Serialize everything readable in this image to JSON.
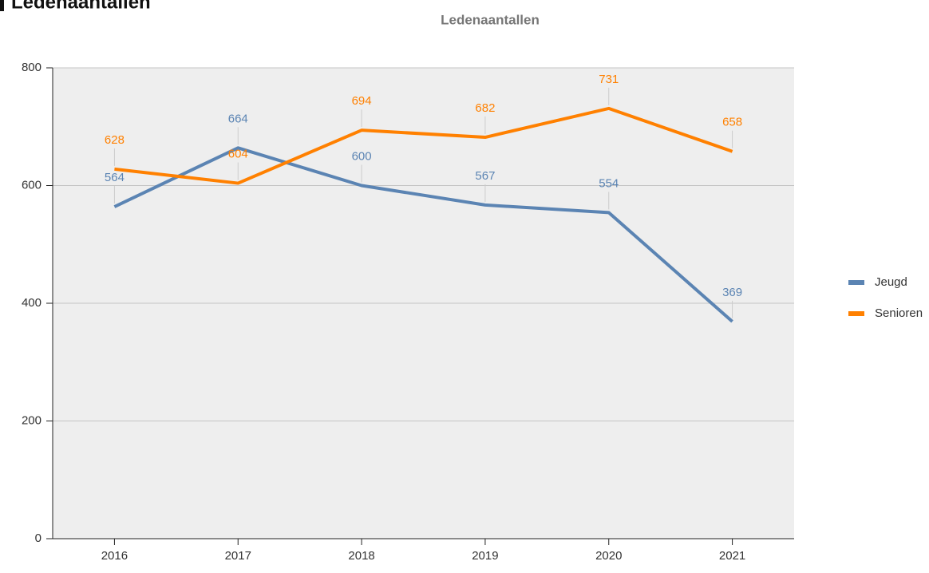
{
  "heading": "Ledenaantallen",
  "chart_data": {
    "type": "line",
    "title": "Ledenaantallen",
    "categories": [
      "2016",
      "2017",
      "2018",
      "2019",
      "2020",
      "2021"
    ],
    "series": [
      {
        "name": "Jeugd",
        "color": "#5b84b3",
        "values": [
          564,
          664,
          600,
          567,
          554,
          369
        ]
      },
      {
        "name": "Senioren",
        "color": "#ff8000",
        "values": [
          628,
          604,
          694,
          682,
          731,
          658
        ]
      }
    ],
    "ylim": [
      0,
      800
    ],
    "yticks": [
      0,
      200,
      400,
      600,
      800
    ],
    "grid": true,
    "legend": "right"
  }
}
